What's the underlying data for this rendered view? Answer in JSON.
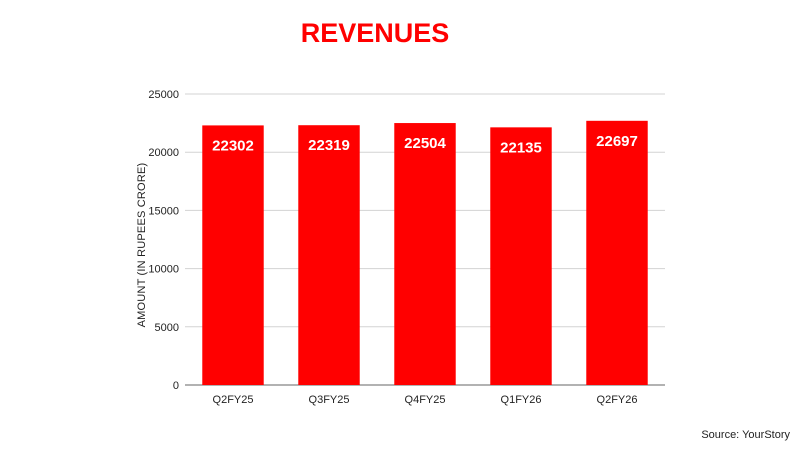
{
  "source_text": "Source: YourStory",
  "colors": {
    "bar": "#ff0000",
    "title": "#ff0000",
    "grid": "#d3d3d3",
    "axis": "#666666"
  },
  "chart_data": {
    "type": "bar",
    "title": "REVENUES",
    "xlabel": "",
    "ylabel": "AMOUNT (IN RUPEES CRORE)",
    "categories": [
      "Q2FY25",
      "Q3FY25",
      "Q4FY25",
      "Q1FY26",
      "Q2FY26"
    ],
    "values": [
      22302,
      22319,
      22504,
      22135,
      22697
    ],
    "data_labels": [
      "22302",
      "22319",
      "22504",
      "22135",
      "22697"
    ],
    "ylim": [
      0,
      25000
    ],
    "yticks": [
      0,
      5000,
      10000,
      15000,
      20000,
      25000
    ],
    "ytick_labels": [
      "0",
      "5000",
      "10000",
      "15000",
      "20000",
      "25000"
    ],
    "grid": true,
    "legend": "none"
  }
}
